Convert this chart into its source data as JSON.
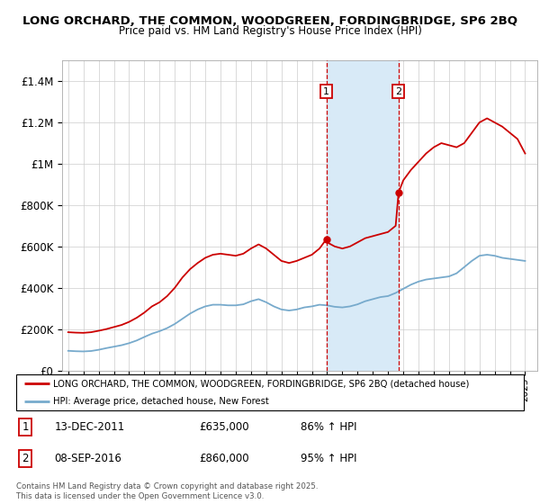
{
  "title_line1": "LONG ORCHARD, THE COMMON, WOODGREEN, FORDINGBRIDGE, SP6 2BQ",
  "title_line2": "Price paid vs. HM Land Registry's House Price Index (HPI)",
  "ylim": [
    0,
    1500000
  ],
  "yticks": [
    0,
    200000,
    400000,
    600000,
    800000,
    1000000,
    1200000,
    1400000
  ],
  "ytick_labels": [
    "£0",
    "£200K",
    "£400K",
    "£600K",
    "£800K",
    "£1M",
    "£1.2M",
    "£1.4M"
  ],
  "xlim_start": 1994.6,
  "xlim_end": 2025.8,
  "grid_color": "#cccccc",
  "red_color": "#cc0000",
  "blue_color": "#77aacc",
  "point1_x": 2011.95,
  "point1_y": 635000,
  "point1_label": "13-DEC-2011",
  "point1_price": "£635,000",
  "point1_hpi": "86% ↑ HPI",
  "point2_x": 2016.69,
  "point2_y": 860000,
  "point2_label": "08-SEP-2016",
  "point2_price": "£860,000",
  "point2_hpi": "95% ↑ HPI",
  "shade_color": "#d8eaf7",
  "legend_label_red": "LONG ORCHARD, THE COMMON, WOODGREEN, FORDINGBRIDGE, SP6 2BQ (detached house)",
  "legend_label_blue": "HPI: Average price, detached house, New Forest",
  "footer_text": "Contains HM Land Registry data © Crown copyright and database right 2025.\nThis data is licensed under the Open Government Licence v3.0.",
  "red_data": {
    "years": [
      1995,
      1995.5,
      1996,
      1996.5,
      1997,
      1997.5,
      1998,
      1998.5,
      1999,
      1999.5,
      2000,
      2000.5,
      2001,
      2001.5,
      2002,
      2002.5,
      2003,
      2003.5,
      2004,
      2004.5,
      2005,
      2005.5,
      2006,
      2006.5,
      2007,
      2007.5,
      2008,
      2008.5,
      2009,
      2009.5,
      2010,
      2010.5,
      2011,
      2011.5,
      2011.95,
      2012,
      2012.5,
      2013,
      2013.5,
      2014,
      2014.5,
      2015,
      2015.5,
      2016,
      2016.5,
      2016.69,
      2017,
      2017.5,
      2018,
      2018.5,
      2019,
      2019.5,
      2020,
      2020.5,
      2021,
      2021.5,
      2022,
      2022.5,
      2023,
      2023.5,
      2024,
      2024.5,
      2025
    ],
    "values": [
      185000,
      183000,
      182000,
      185000,
      192000,
      200000,
      210000,
      220000,
      235000,
      255000,
      280000,
      310000,
      330000,
      360000,
      400000,
      450000,
      490000,
      520000,
      545000,
      560000,
      565000,
      560000,
      555000,
      565000,
      590000,
      610000,
      590000,
      560000,
      530000,
      520000,
      530000,
      545000,
      560000,
      590000,
      635000,
      620000,
      600000,
      590000,
      600000,
      620000,
      640000,
      650000,
      660000,
      670000,
      700000,
      860000,
      920000,
      970000,
      1010000,
      1050000,
      1080000,
      1100000,
      1090000,
      1080000,
      1100000,
      1150000,
      1200000,
      1220000,
      1200000,
      1180000,
      1150000,
      1120000,
      1050000
    ]
  },
  "blue_data": {
    "years": [
      1995,
      1995.5,
      1996,
      1996.5,
      1997,
      1997.5,
      1998,
      1998.5,
      1999,
      1999.5,
      2000,
      2000.5,
      2001,
      2001.5,
      2002,
      2002.5,
      2003,
      2003.5,
      2004,
      2004.5,
      2005,
      2005.5,
      2006,
      2006.5,
      2007,
      2007.5,
      2008,
      2008.5,
      2009,
      2009.5,
      2010,
      2010.5,
      2011,
      2011.5,
      2012,
      2012.5,
      2013,
      2013.5,
      2014,
      2014.5,
      2015,
      2015.5,
      2016,
      2016.5,
      2017,
      2017.5,
      2018,
      2018.5,
      2019,
      2019.5,
      2020,
      2020.5,
      2021,
      2021.5,
      2022,
      2022.5,
      2023,
      2023.5,
      2024,
      2024.5,
      2025
    ],
    "values": [
      95000,
      93000,
      92000,
      94000,
      100000,
      108000,
      115000,
      122000,
      132000,
      145000,
      162000,
      178000,
      190000,
      205000,
      225000,
      250000,
      275000,
      295000,
      310000,
      318000,
      318000,
      315000,
      315000,
      320000,
      335000,
      345000,
      330000,
      310000,
      295000,
      290000,
      295000,
      305000,
      310000,
      318000,
      315000,
      308000,
      305000,
      310000,
      320000,
      335000,
      345000,
      355000,
      360000,
      375000,
      395000,
      415000,
      430000,
      440000,
      445000,
      450000,
      455000,
      470000,
      500000,
      530000,
      555000,
      560000,
      555000,
      545000,
      540000,
      535000,
      530000
    ]
  }
}
